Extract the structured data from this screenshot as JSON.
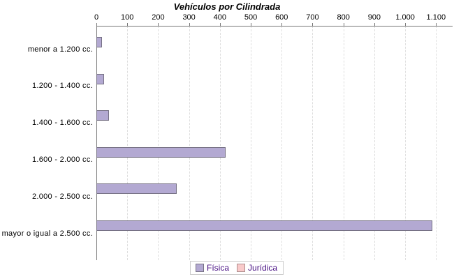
{
  "title": "Vehículos por Cilindrada",
  "chart_data": {
    "type": "bar",
    "orientation": "horizontal",
    "title": "Vehículos por Cilindrada",
    "categories": [
      "menor a 1.200 cc.",
      "1.200 - 1.400 cc.",
      "1.400 - 1.600 cc.",
      "1.600 - 2.000 cc.",
      "2.000 - 2.500 cc.",
      "mayor o igual a 2.500 cc."
    ],
    "series": [
      {
        "name": "Física",
        "values": [
          18,
          25,
          40,
          418,
          260,
          1088
        ],
        "fill": "#b3a9d2",
        "border": "#757083"
      },
      {
        "name": "Jurídica",
        "values": [
          0,
          0,
          0,
          0,
          0,
          0
        ],
        "fill": "#f9caca",
        "border": "#ad8d8d"
      }
    ],
    "x_axis": {
      "min": 0,
      "max": 1100,
      "tick_interval": 100,
      "tick_labels": [
        "0",
        "100",
        "200",
        "300",
        "400",
        "500",
        "600",
        "700",
        "800",
        "900",
        "1.000",
        "1.100"
      ],
      "position": "top"
    },
    "grid": {
      "vertical_dashed": true,
      "color": "#dedede"
    },
    "axis_color": "#777777",
    "legend_position": "bottom"
  },
  "legend": {
    "items": [
      {
        "label": "Física",
        "swatch_fill": "#b3a9d2",
        "swatch_border": "#757083"
      },
      {
        "label": "Jurídica",
        "swatch_fill": "#f9caca",
        "swatch_border": "#ad8d8d"
      }
    ],
    "text_color": "#470e82",
    "border_color": "#cccccc"
  }
}
